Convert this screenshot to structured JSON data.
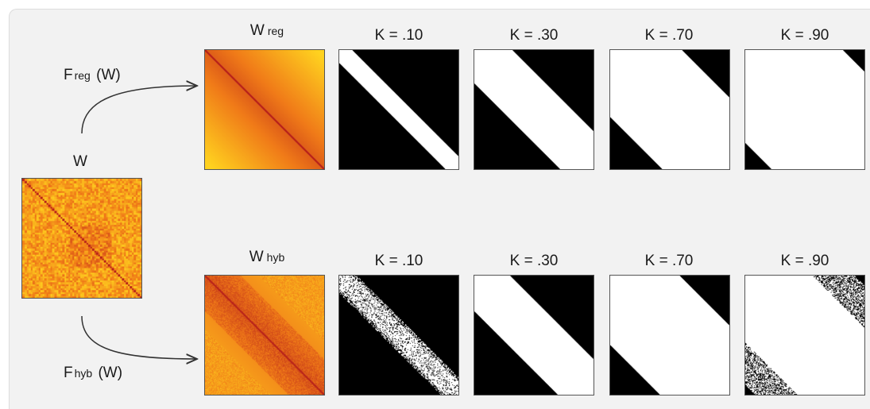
{
  "source": {
    "label": "W"
  },
  "rows": [
    {
      "id": "reg",
      "function_label": {
        "main": "F",
        "sub": "reg",
        "arg": "(W)"
      },
      "matrix_label": {
        "main": "W",
        "sub": "reg"
      },
      "thresholds": [
        "K  =  .10",
        "K  =  .30",
        "K  =  .70",
        "K  =  .90"
      ],
      "threshold_values": [
        0.1,
        0.3,
        0.7,
        0.9
      ]
    },
    {
      "id": "hyb",
      "function_label": {
        "main": "F",
        "sub": "hyb",
        "arg": "(W)"
      },
      "matrix_label": {
        "main": "W",
        "sub": "hyb"
      },
      "thresholds": [
        "K  =  .10",
        "K  =  .30",
        "K  =  .70",
        "K  =  .90"
      ],
      "threshold_values": [
        0.1,
        0.3,
        0.7,
        0.9
      ]
    }
  ],
  "colors": {
    "panel": "#f2f2f2",
    "arrow": "#333333",
    "heat_dark": "#b31a1a",
    "heat_mid": "#f07a18",
    "heat_light": "#ffd21f",
    "mask_on": "#ffffff",
    "mask_off": "#000000"
  }
}
